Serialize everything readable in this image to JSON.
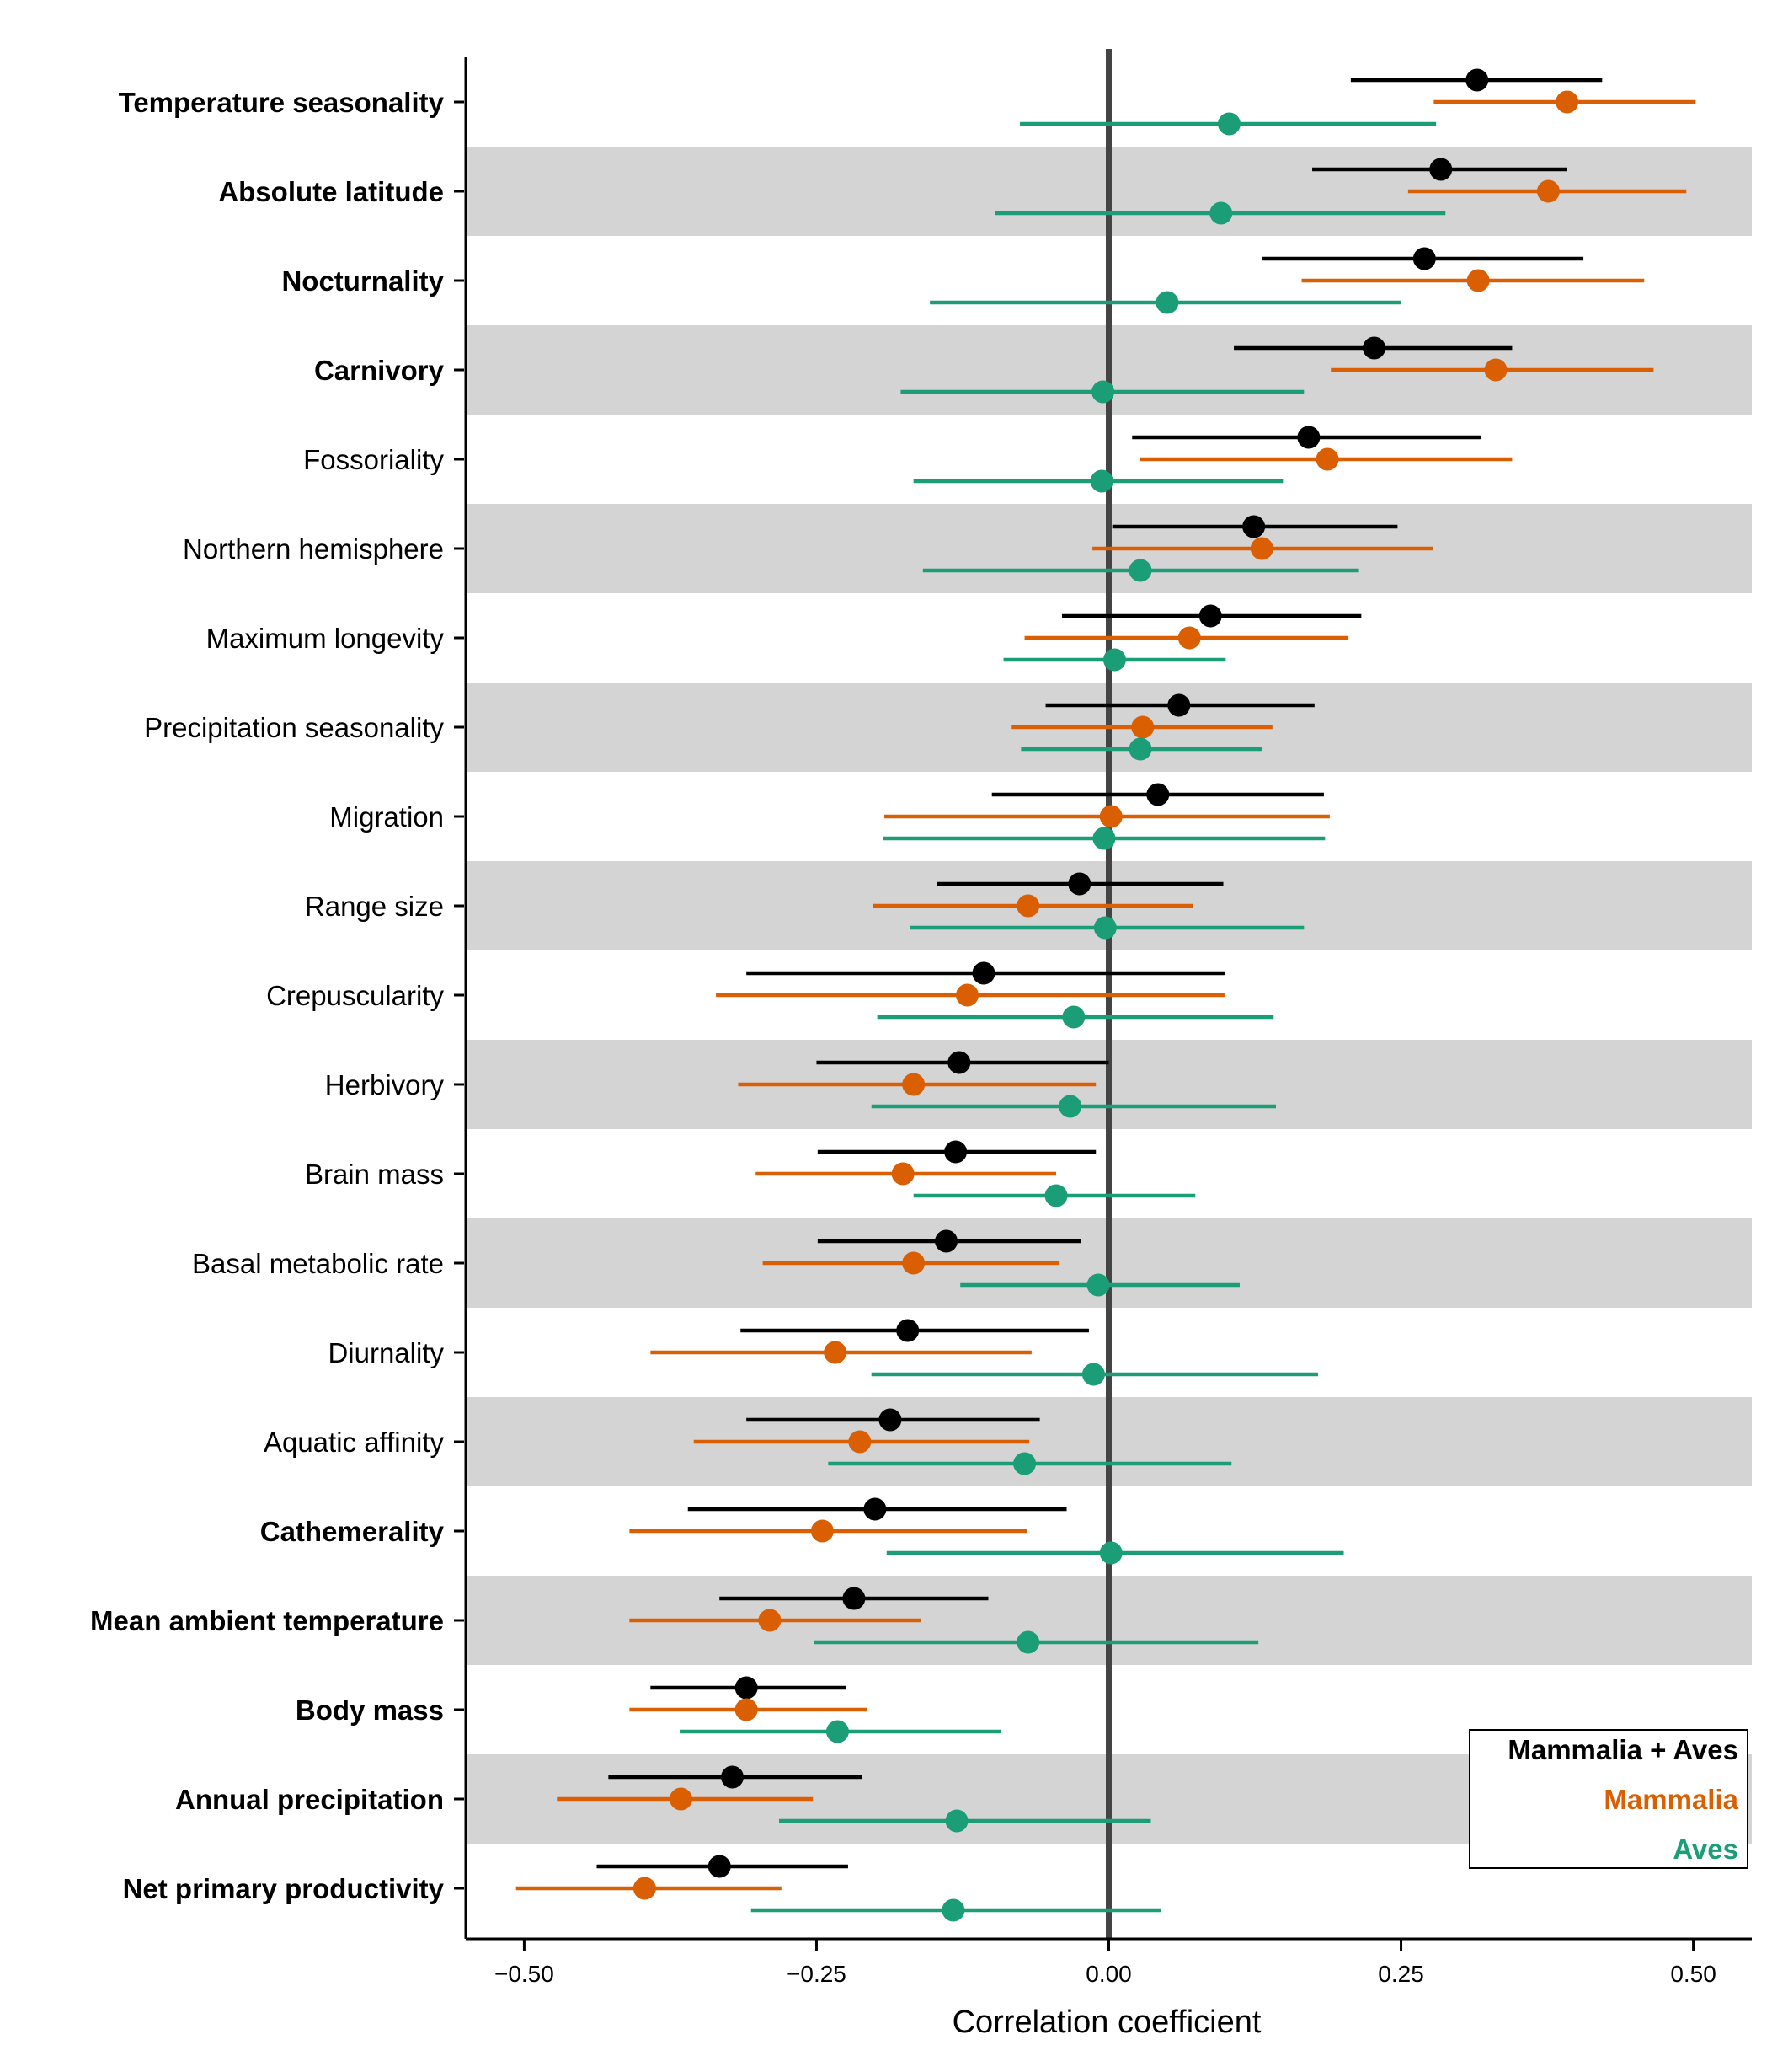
{
  "chart_data": {
    "type": "forest",
    "xlabel": "Correlation coefficient",
    "xlim": [
      -0.55,
      0.55
    ],
    "xticks": [
      -0.5,
      -0.25,
      0.0,
      0.25,
      0.5
    ],
    "xtick_labels": [
      "−0.50",
      "−0.25",
      "0.00",
      "0.25",
      "0.50"
    ],
    "reference_line": 0,
    "legend_position": "bottom-right",
    "series": [
      {
        "name": "Mammalia + Aves",
        "color": "#000000"
      },
      {
        "name": "Mammalia",
        "color": "#d95f02"
      },
      {
        "name": "Aves",
        "color": "#1b9e77"
      }
    ],
    "rows": [
      {
        "label": "Temperature seasonality",
        "bold": true,
        "values": [
          {
            "est": 0.315,
            "lo": 0.207,
            "hi": 0.422
          },
          {
            "est": 0.392,
            "lo": 0.278,
            "hi": 0.502
          },
          {
            "est": 0.103,
            "lo": -0.076,
            "hi": 0.28
          }
        ]
      },
      {
        "label": "Absolute latitude",
        "bold": true,
        "values": [
          {
            "est": 0.284,
            "lo": 0.174,
            "hi": 0.392
          },
          {
            "est": 0.376,
            "lo": 0.256,
            "hi": 0.494
          },
          {
            "est": 0.096,
            "lo": -0.097,
            "hi": 0.288
          }
        ]
      },
      {
        "label": "Nocturnality",
        "bold": true,
        "values": [
          {
            "est": 0.27,
            "lo": 0.131,
            "hi": 0.406
          },
          {
            "est": 0.316,
            "lo": 0.165,
            "hi": 0.458
          },
          {
            "est": 0.05,
            "lo": -0.153,
            "hi": 0.25
          }
        ]
      },
      {
        "label": "Carnivory",
        "bold": true,
        "values": [
          {
            "est": 0.227,
            "lo": 0.107,
            "hi": 0.345
          },
          {
            "est": 0.331,
            "lo": 0.19,
            "hi": 0.466
          },
          {
            "est": -0.005,
            "lo": -0.178,
            "hi": 0.167
          }
        ]
      },
      {
        "label": "Fossoriality",
        "bold": false,
        "values": [
          {
            "est": 0.171,
            "lo": 0.02,
            "hi": 0.318
          },
          {
            "est": 0.187,
            "lo": 0.027,
            "hi": 0.345
          },
          {
            "est": -0.006,
            "lo": -0.167,
            "hi": 0.149
          }
        ]
      },
      {
        "label": "Northern hemisphere",
        "bold": false,
        "values": [
          {
            "est": 0.124,
            "lo": 0.003,
            "hi": 0.247
          },
          {
            "est": 0.131,
            "lo": -0.014,
            "hi": 0.277
          },
          {
            "est": 0.027,
            "lo": -0.159,
            "hi": 0.214
          }
        ]
      },
      {
        "label": "Maximum longevity",
        "bold": false,
        "values": [
          {
            "est": 0.087,
            "lo": -0.04,
            "hi": 0.216
          },
          {
            "est": 0.069,
            "lo": -0.072,
            "hi": 0.205
          },
          {
            "est": 0.005,
            "lo": -0.09,
            "hi": 0.1
          }
        ]
      },
      {
        "label": "Precipitation seasonality",
        "bold": false,
        "values": [
          {
            "est": 0.06,
            "lo": -0.054,
            "hi": 0.176
          },
          {
            "est": 0.029,
            "lo": -0.083,
            "hi": 0.14
          },
          {
            "est": 0.027,
            "lo": -0.075,
            "hi": 0.131
          }
        ]
      },
      {
        "label": "Migration",
        "bold": false,
        "values": [
          {
            "est": 0.042,
            "lo": -0.1,
            "hi": 0.184
          },
          {
            "est": 0.002,
            "lo": -0.192,
            "hi": 0.189
          },
          {
            "est": -0.004,
            "lo": -0.193,
            "hi": 0.185
          }
        ]
      },
      {
        "label": "Range size",
        "bold": false,
        "values": [
          {
            "est": -0.025,
            "lo": -0.147,
            "hi": 0.098
          },
          {
            "est": -0.069,
            "lo": -0.202,
            "hi": 0.072
          },
          {
            "est": -0.003,
            "lo": -0.17,
            "hi": 0.167
          }
        ]
      },
      {
        "label": "Crepuscularity",
        "bold": false,
        "values": [
          {
            "est": -0.107,
            "lo": -0.31,
            "hi": 0.099
          },
          {
            "est": -0.121,
            "lo": -0.336,
            "hi": 0.099
          },
          {
            "est": -0.03,
            "lo": -0.198,
            "hi": 0.141
          }
        ]
      },
      {
        "label": "Herbivory",
        "bold": false,
        "values": [
          {
            "est": -0.128,
            "lo": -0.25,
            "hi": 0.0
          },
          {
            "est": -0.167,
            "lo": -0.317,
            "hi": -0.011
          },
          {
            "est": -0.033,
            "lo": -0.203,
            "hi": 0.143
          }
        ]
      },
      {
        "label": "Brain mass",
        "bold": false,
        "values": [
          {
            "est": -0.131,
            "lo": -0.249,
            "hi": -0.011
          },
          {
            "est": -0.176,
            "lo": -0.302,
            "hi": -0.045
          },
          {
            "est": -0.045,
            "lo": -0.167,
            "hi": 0.074
          }
        ]
      },
      {
        "label": "Basal metabolic rate",
        "bold": false,
        "values": [
          {
            "est": -0.139,
            "lo": -0.249,
            "hi": -0.024
          },
          {
            "est": -0.167,
            "lo": -0.296,
            "hi": -0.042
          },
          {
            "est": -0.009,
            "lo": -0.127,
            "hi": 0.112
          }
        ]
      },
      {
        "label": "Diurnality",
        "bold": false,
        "values": [
          {
            "est": -0.172,
            "lo": -0.315,
            "hi": -0.017
          },
          {
            "est": -0.234,
            "lo": -0.392,
            "hi": -0.066
          },
          {
            "est": -0.013,
            "lo": -0.203,
            "hi": 0.179
          }
        ]
      },
      {
        "label": "Aquatic affinity",
        "bold": false,
        "values": [
          {
            "est": -0.187,
            "lo": -0.31,
            "hi": -0.059
          },
          {
            "est": -0.213,
            "lo": -0.355,
            "hi": -0.068
          },
          {
            "est": -0.072,
            "lo": -0.24,
            "hi": 0.105
          }
        ]
      },
      {
        "label": "Cathemerality",
        "bold": true,
        "values": [
          {
            "est": -0.2,
            "lo": -0.36,
            "hi": -0.036
          },
          {
            "est": -0.245,
            "lo": -0.41,
            "hi": -0.07
          },
          {
            "est": 0.002,
            "lo": -0.19,
            "hi": 0.201
          }
        ]
      },
      {
        "label": "Mean ambient temperature",
        "bold": true,
        "values": [
          {
            "est": -0.218,
            "lo": -0.333,
            "hi": -0.103
          },
          {
            "est": -0.29,
            "lo": -0.41,
            "hi": -0.161
          },
          {
            "est": -0.069,
            "lo": -0.252,
            "hi": 0.128
          }
        ]
      },
      {
        "label": "Body mass",
        "bold": true,
        "values": [
          {
            "est": -0.31,
            "lo": -0.392,
            "hi": -0.225
          },
          {
            "est": -0.31,
            "lo": -0.41,
            "hi": -0.207
          },
          {
            "est": -0.232,
            "lo": -0.367,
            "hi": -0.092
          }
        ]
      },
      {
        "label": "Annual precipitation",
        "bold": true,
        "values": [
          {
            "est": -0.322,
            "lo": -0.428,
            "hi": -0.211
          },
          {
            "est": -0.366,
            "lo": -0.472,
            "hi": -0.253
          },
          {
            "est": -0.13,
            "lo": -0.282,
            "hi": 0.036
          }
        ]
      },
      {
        "label": "Net primary productivity",
        "bold": true,
        "values": [
          {
            "est": -0.333,
            "lo": -0.438,
            "hi": -0.223
          },
          {
            "est": -0.397,
            "lo": -0.507,
            "hi": -0.28
          },
          {
            "est": -0.133,
            "lo": -0.306,
            "hi": 0.045
          }
        ]
      }
    ]
  }
}
